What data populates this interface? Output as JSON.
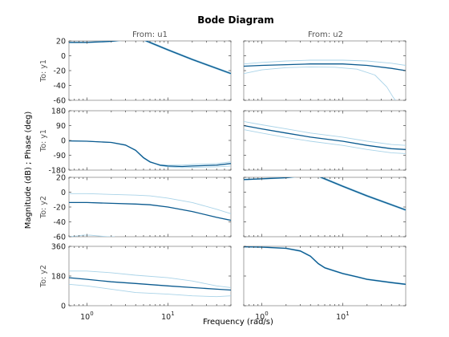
{
  "chart_data": {
    "type": "line",
    "title": "Bode Diagram",
    "xlabel": "Frequency  (rad/s)",
    "ylabel": "Magnitude (dB) ; Phase (deg)",
    "x_scale": "log",
    "xlim": [
      0.6,
      60
    ],
    "x_ticks": [
      {
        "value": 1,
        "base": "10",
        "exp": "0"
      },
      {
        "value": 10,
        "base": "10",
        "exp": "1"
      }
    ],
    "columns": [
      "From: u1",
      "From: u2"
    ],
    "rows": [
      "To: y1",
      "To: y1",
      "To: y2",
      "To: y2"
    ],
    "colors": {
      "nominal": "#0a5a8f",
      "bound": "#a9d3e8"
    },
    "grid": false,
    "panels": [
      {
        "row": 0,
        "col": 0,
        "kind": "magnitude",
        "ylim": [
          -60,
          20
        ],
        "y_ticks": [
          "20",
          "0",
          "-20",
          "-40",
          "-60"
        ],
        "series": [
          {
            "role": "nominal",
            "x": [
              0.6,
              1,
              2,
              3,
              4,
              5,
              6,
              10,
              20,
              30,
              60
            ],
            "y": [
              18,
              18,
              19.5,
              21.5,
              22.5,
              21.5,
              18,
              8,
              -5,
              -12,
              -24
            ]
          },
          {
            "role": "bound",
            "x": [
              0.6,
              1,
              2,
              3,
              4,
              5,
              6,
              10,
              20,
              30,
              60
            ],
            "y": [
              18.5,
              18.5,
              20,
              22.5,
              23.5,
              22.5,
              19,
              9,
              -4,
              -11,
              -23
            ]
          },
          {
            "role": "bound",
            "x": [
              0.6,
              1,
              2,
              3,
              4,
              5,
              6,
              10,
              20,
              30,
              60
            ],
            "y": [
              17.5,
              17.5,
              19,
              21,
              22,
              20.5,
              17,
              7,
              -6,
              -13,
              -25
            ]
          }
        ]
      },
      {
        "row": 0,
        "col": 1,
        "kind": "magnitude",
        "ylim": [
          -60,
          20
        ],
        "y_ticks": [
          "20",
          "0",
          "-20",
          "-40",
          "-60"
        ],
        "series": [
          {
            "role": "nominal",
            "x": [
              0.6,
              1,
              2,
              4,
              10,
              20,
              40,
              60
            ],
            "y": [
              -14,
              -13,
              -12,
              -11,
              -11,
              -13,
              -17,
              -20
            ]
          },
          {
            "role": "bound",
            "x": [
              0.6,
              1,
              2,
              4,
              10,
              20,
              40,
              60
            ],
            "y": [
              -11,
              -9,
              -7,
              -6,
              -6,
              -7,
              -10,
              -13
            ]
          },
          {
            "role": "bound",
            "x": [
              0.6,
              1,
              2,
              4,
              8,
              15,
              25,
              35,
              42,
              45
            ],
            "y": [
              -24,
              -19,
              -16,
              -15,
              -15.5,
              -18,
              -26,
              -42,
              -56,
              -60
            ]
          }
        ]
      },
      {
        "row": 1,
        "col": 0,
        "kind": "phase",
        "ylim": [
          -180,
          180
        ],
        "y_ticks": [
          "180",
          "90",
          "0",
          "-90",
          "-180"
        ],
        "series": [
          {
            "role": "nominal",
            "x": [
              0.6,
              1,
              2,
              3,
              4,
              5,
              6,
              8,
              10,
              15,
              20,
              40,
              60
            ],
            "y": [
              -3,
              -5,
              -12,
              -28,
              -60,
              -105,
              -130,
              -150,
              -155,
              -158,
              -155,
              -150,
              -140
            ]
          },
          {
            "role": "bound",
            "x": [
              0.6,
              1,
              2,
              3,
              4,
              5,
              6,
              8,
              10,
              15,
              20,
              40,
              60
            ],
            "y": [
              -3,
              -5,
              -13,
              -30,
              -63,
              -108,
              -133,
              -148,
              -150,
              -150,
              -146,
              -140,
              -130
            ]
          },
          {
            "role": "bound",
            "x": [
              0.6,
              1,
              2,
              3,
              4,
              5,
              6,
              8,
              10,
              15,
              20,
              40,
              60
            ],
            "y": [
              -3,
              -5,
              -12,
              -27,
              -58,
              -102,
              -128,
              -153,
              -160,
              -165,
              -163,
              -160,
              -155
            ]
          }
        ]
      },
      {
        "row": 1,
        "col": 1,
        "kind": "phase",
        "ylim": [
          -180,
          180
        ],
        "y_ticks": [
          "180",
          "90",
          "0",
          "-90",
          "-180"
        ],
        "series": [
          {
            "role": "nominal",
            "x": [
              0.6,
              1,
              2,
              4,
              10,
              20,
              40,
              60
            ],
            "y": [
              90,
              70,
              45,
              20,
              -5,
              -30,
              -50,
              -55
            ]
          },
          {
            "role": "bound",
            "x": [
              0.6,
              1,
              2,
              4,
              10,
              20,
              40,
              60
            ],
            "y": [
              115,
              95,
              70,
              45,
              20,
              -5,
              -25,
              -30
            ]
          },
          {
            "role": "bound",
            "x": [
              0.6,
              1,
              2,
              4,
              10,
              20,
              40,
              60
            ],
            "y": [
              65,
              45,
              18,
              -5,
              -30,
              -55,
              -75,
              -80
            ]
          }
        ]
      },
      {
        "row": 2,
        "col": 0,
        "kind": "magnitude",
        "ylim": [
          -60,
          20
        ],
        "y_ticks": [
          "20",
          "0",
          "-20",
          "-40",
          "-60"
        ],
        "series": [
          {
            "role": "nominal",
            "x": [
              0.6,
              1,
              2,
              4,
              6,
              10,
              20,
              40,
              60
            ],
            "y": [
              -14,
              -14,
              -15,
              -16,
              -17,
              -20,
              -26,
              -34,
              -38
            ]
          },
          {
            "role": "bound",
            "x": [
              0.6,
              1,
              2,
              4,
              6,
              10,
              20,
              40,
              60
            ],
            "y": [
              -2,
              -2,
              -3,
              -4,
              -5,
              -8,
              -14,
              -23,
              -29
            ]
          },
          {
            "role": "bound",
            "x": [
              0.6,
              0.75,
              0.9,
              1.1,
              1.4,
              1.8,
              2.2
            ],
            "y": [
              -60,
              -59,
              -58,
              -58,
              -59,
              -60,
              -60
            ]
          }
        ]
      },
      {
        "row": 2,
        "col": 1,
        "kind": "magnitude",
        "ylim": [
          -60,
          20
        ],
        "y_ticks": [
          "20",
          "0",
          "-20",
          "-40",
          "-60"
        ],
        "series": [
          {
            "role": "nominal",
            "x": [
              0.6,
              1,
              2,
              3,
              4,
              5,
              6,
              10,
              20,
              30,
              60
            ],
            "y": [
              17,
              18,
              19.5,
              21.5,
              22.5,
              21.5,
              18,
              8,
              -5,
              -12,
              -24
            ]
          },
          {
            "role": "bound",
            "x": [
              0.6,
              1,
              2,
              3,
              4,
              5,
              6,
              10,
              20,
              30,
              60
            ],
            "y": [
              17.5,
              18.5,
              20,
              22.5,
              23.5,
              22.5,
              19,
              9,
              -4,
              -11,
              -23
            ]
          },
          {
            "role": "bound",
            "x": [
              0.6,
              1,
              2,
              3,
              4,
              5,
              6,
              10,
              20,
              30,
              60
            ],
            "y": [
              16.5,
              17.5,
              19,
              21,
              22,
              20.5,
              17,
              7,
              -6,
              -13,
              -25
            ]
          }
        ]
      },
      {
        "row": 3,
        "col": 0,
        "kind": "phase",
        "ylim": [
          0,
          360
        ],
        "y_ticks": [
          "360",
          "180",
          "0"
        ],
        "series": [
          {
            "role": "nominal",
            "x": [
              0.6,
              1,
              2,
              4,
              10,
              20,
              40,
              60
            ],
            "y": [
              170,
              160,
              145,
              135,
              120,
              110,
              100,
              95
            ]
          },
          {
            "role": "bound",
            "x": [
              0.6,
              1,
              2,
              4,
              10,
              20,
              40,
              60
            ],
            "y": [
              210,
              210,
              200,
              185,
              170,
              150,
              120,
              110
            ]
          },
          {
            "role": "bound",
            "x": [
              0.6,
              1,
              2,
              4,
              10,
              20,
              40,
              60
            ],
            "y": [
              130,
              120,
              100,
              80,
              70,
              60,
              55,
              60
            ]
          }
        ]
      },
      {
        "row": 3,
        "col": 1,
        "kind": "phase",
        "ylim": [
          0,
          360
        ],
        "y_ticks": [
          "360",
          "180",
          "0"
        ],
        "series": [
          {
            "role": "nominal",
            "x": [
              0.6,
              1,
              2,
              3,
              4,
              5,
              6,
              8,
              10,
              15,
              20,
              40,
              60
            ],
            "y": [
              357,
              355,
              348,
              332,
              300,
              255,
              230,
              210,
              195,
              175,
              160,
              140,
              130
            ]
          },
          {
            "role": "bound",
            "x": [
              0.6,
              1,
              2,
              3,
              4,
              5,
              6,
              8,
              10,
              15,
              20,
              40,
              60
            ],
            "y": [
              358,
              357,
              350,
              335,
              303,
              258,
              233,
              213,
              198,
              178,
              163,
              143,
              133
            ]
          },
          {
            "role": "bound",
            "x": [
              0.6,
              1,
              2,
              3,
              4,
              5,
              6,
              8,
              10,
              15,
              20,
              40,
              60
            ],
            "y": [
              356,
              353,
              346,
              329,
              297,
              252,
              227,
              207,
              192,
              172,
              157,
              137,
              127
            ]
          }
        ]
      }
    ]
  }
}
